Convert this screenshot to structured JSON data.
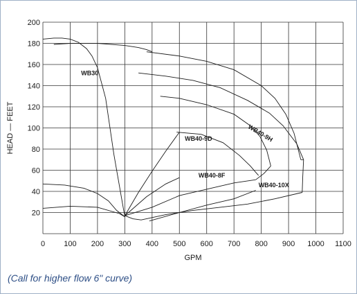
{
  "chart_data": {
    "type": "line",
    "title": "",
    "xlabel": "GPM",
    "ylabel": "HEAD — FEET",
    "xlim": [
      0,
      1100
    ],
    "ylim": [
      0,
      200
    ],
    "x_ticks": [
      0,
      100,
      200,
      300,
      400,
      500,
      600,
      700,
      800,
      900,
      1000,
      1100
    ],
    "y_ticks": [
      20,
      40,
      60,
      80,
      100,
      120,
      140,
      160,
      180,
      200
    ],
    "grid": true,
    "series": [
      {
        "name": "WB30",
        "x": [
          0,
          40,
          70,
          100,
          130,
          160,
          180,
          200,
          230,
          260,
          300
        ],
        "y": [
          184,
          185,
          185,
          184,
          181,
          175,
          168,
          157,
          128,
          75,
          16
        ]
      },
      {
        "name": "",
        "x": [
          0,
          100,
          200,
          280,
          300
        ],
        "y": [
          24,
          26,
          25,
          19,
          16
        ]
      },
      {
        "name": "",
        "x": [
          0,
          80,
          150,
          200,
          240,
          270,
          300
        ],
        "y": [
          47,
          46,
          43,
          38,
          31,
          22,
          16
        ]
      },
      {
        "name": "",
        "x": [
          40,
          100,
          200,
          300,
          350,
          380,
          400
        ],
        "y": [
          179,
          180,
          180,
          178,
          176,
          174,
          172
        ]
      },
      {
        "name": "WB40-9H",
        "x": [
          380,
          500,
          600,
          700,
          800,
          850,
          890,
          920,
          945
        ],
        "y": [
          172,
          168,
          163,
          155,
          140,
          128,
          113,
          95,
          70
        ]
      },
      {
        "name": "",
        "x": [
          350,
          450,
          550,
          650,
          750,
          830,
          880,
          930,
          955
        ],
        "y": [
          152,
          149,
          145,
          138,
          126,
          114,
          102,
          85,
          70
        ]
      },
      {
        "name": "",
        "x": [
          430,
          500,
          600,
          700,
          760,
          795,
          820,
          835
        ],
        "y": [
          130,
          128,
          122,
          113,
          102,
          92,
          79,
          64
        ]
      },
      {
        "name": "WB40-9D",
        "x": [
          490,
          580,
          660,
          720,
          760,
          780,
          790
        ],
        "y": [
          96,
          94,
          86,
          74,
          64,
          58,
          55
        ]
      },
      {
        "name": "WB40-8F",
        "x": [
          390,
          500,
          600,
          700,
          780
        ],
        "y": [
          12,
          20,
          27,
          33,
          41
        ]
      },
      {
        "name": "",
        "x": [
          300,
          400,
          500,
          600,
          700,
          780
        ],
        "y": [
          17,
          25,
          36,
          42,
          48,
          51
        ]
      },
      {
        "name": "",
        "x": [
          300,
          350,
          400,
          450,
          500
        ],
        "y": [
          17,
          39,
          59,
          78,
          96
        ]
      },
      {
        "name": "",
        "x": [
          300,
          380,
          450,
          500
        ],
        "y": [
          17,
          35,
          47,
          53
        ]
      },
      {
        "name": "WB40-10X",
        "x": [
          360,
          450,
          550,
          650,
          750,
          850,
          950
        ],
        "y": [
          13,
          18,
          22,
          25,
          28,
          33,
          39
        ]
      },
      {
        "name": "",
        "x": [
          300,
          330,
          360
        ],
        "y": [
          17,
          14,
          13
        ]
      },
      {
        "name": "",
        "x": [
          945,
          955
        ],
        "y": [
          70,
          70
        ]
      },
      {
        "name": "",
        "x": [
          950,
          952,
          955
        ],
        "y": [
          39,
          54,
          70
        ]
      },
      {
        "name": "",
        "x": [
          780,
          810,
          835
        ],
        "y": [
          51,
          57,
          64
        ]
      }
    ],
    "annotations": [
      {
        "text": "WB30",
        "x": 140,
        "y": 150
      },
      {
        "text": "WB40-9H",
        "x": 750,
        "y": 100
      },
      {
        "text": "WB40-9D",
        "x": 520,
        "y": 88
      },
      {
        "text": "WB40-8F",
        "x": 570,
        "y": 53
      },
      {
        "text": "WB40-10X",
        "x": 790,
        "y": 44
      }
    ]
  },
  "footnote": "(Call for higher flow 6\" curve)",
  "colors": {
    "background": "#c9d3e1",
    "footnote": "#2e4f86"
  }
}
